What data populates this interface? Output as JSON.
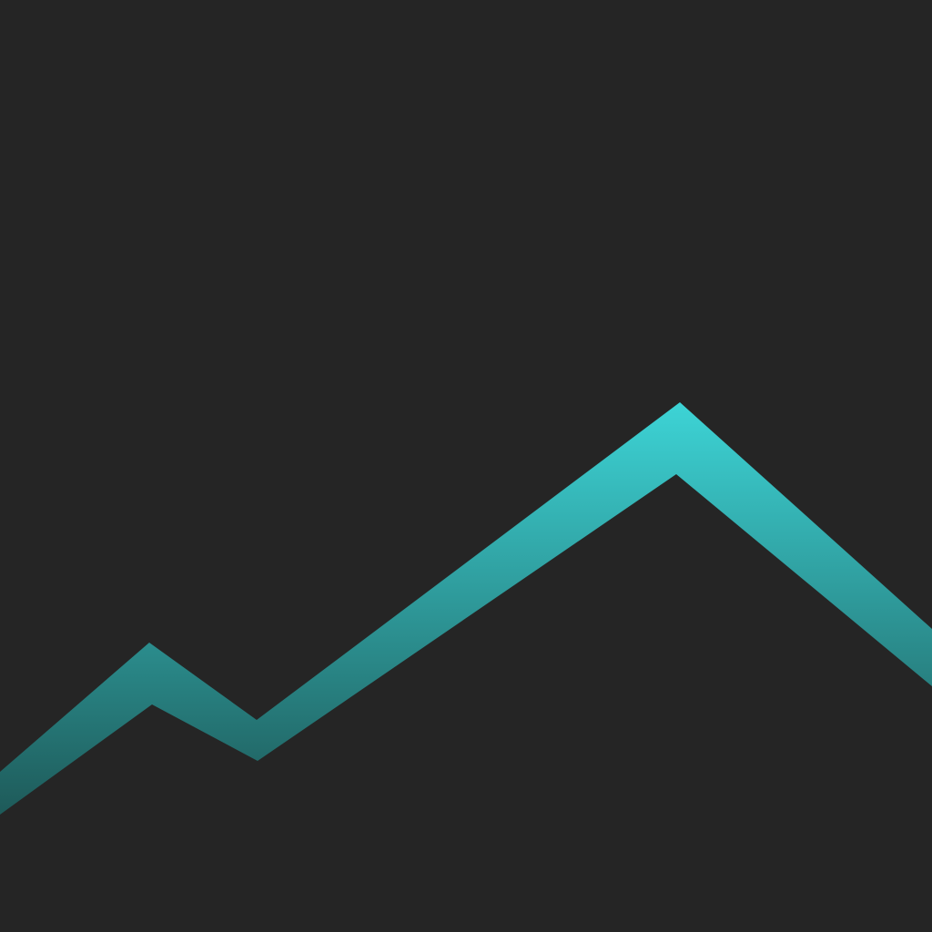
{
  "background_color": "#252525",
  "graphic": {
    "kind": "mountain-line-band",
    "gradient_top_color": "#3dd4d6",
    "gradient_bottom_color": "#1e5a59"
  }
}
